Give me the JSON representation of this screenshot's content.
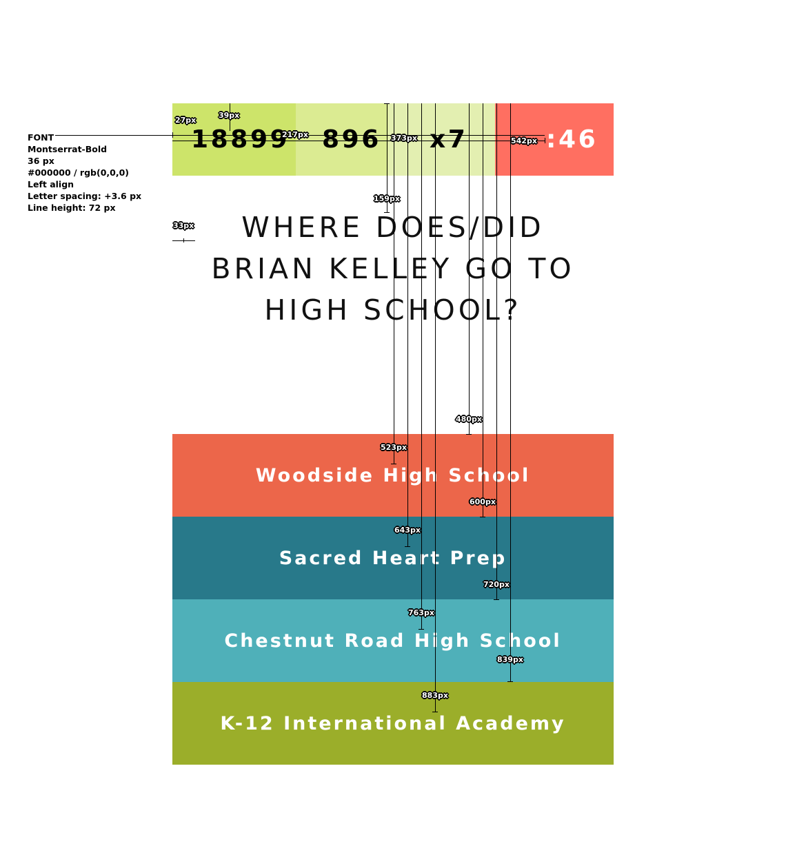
{
  "font_note": {
    "title": "FONT",
    "lines": [
      "Montserrat-Bold",
      "36 px",
      "#000000 / rgb(0,0,0)",
      "Left align",
      "Letter spacing: +3.6 px",
      "Line height: 72 px"
    ]
  },
  "score_bar": {
    "stat1": "18899",
    "stat2": "896",
    "stat3": "x7",
    "timer": ":46",
    "colors": {
      "seg1": "#cde46a",
      "seg2": "#dbeb92",
      "seg3": "#e3efb1",
      "timer_bg": "#ff6f61"
    }
  },
  "question": {
    "lines": [
      "WHERE DOES/DID",
      "BRIAN KELLEY GO TO",
      "HIGH SCHOOL?"
    ]
  },
  "answers": [
    {
      "label": "Woodside High School",
      "color": "#ec664a"
    },
    {
      "label": "Sacred Heart Prep",
      "color": "#28798a"
    },
    {
      "label": "Chestnut Road High School",
      "color": "#4fb0b9"
    },
    {
      "label": "K-12 International Academy",
      "color": "#9bae2a"
    }
  ],
  "measurements": {
    "m27": "27px",
    "m39": "39px",
    "m217": "217px",
    "m373": "373px",
    "m542": "542px",
    "m159": "159px",
    "m33": "33px",
    "m480": "480px",
    "m523": "523px",
    "m600": "600px",
    "m643": "643px",
    "m720": "720px",
    "m763": "763px",
    "m839": "839px",
    "m883": "883px"
  }
}
